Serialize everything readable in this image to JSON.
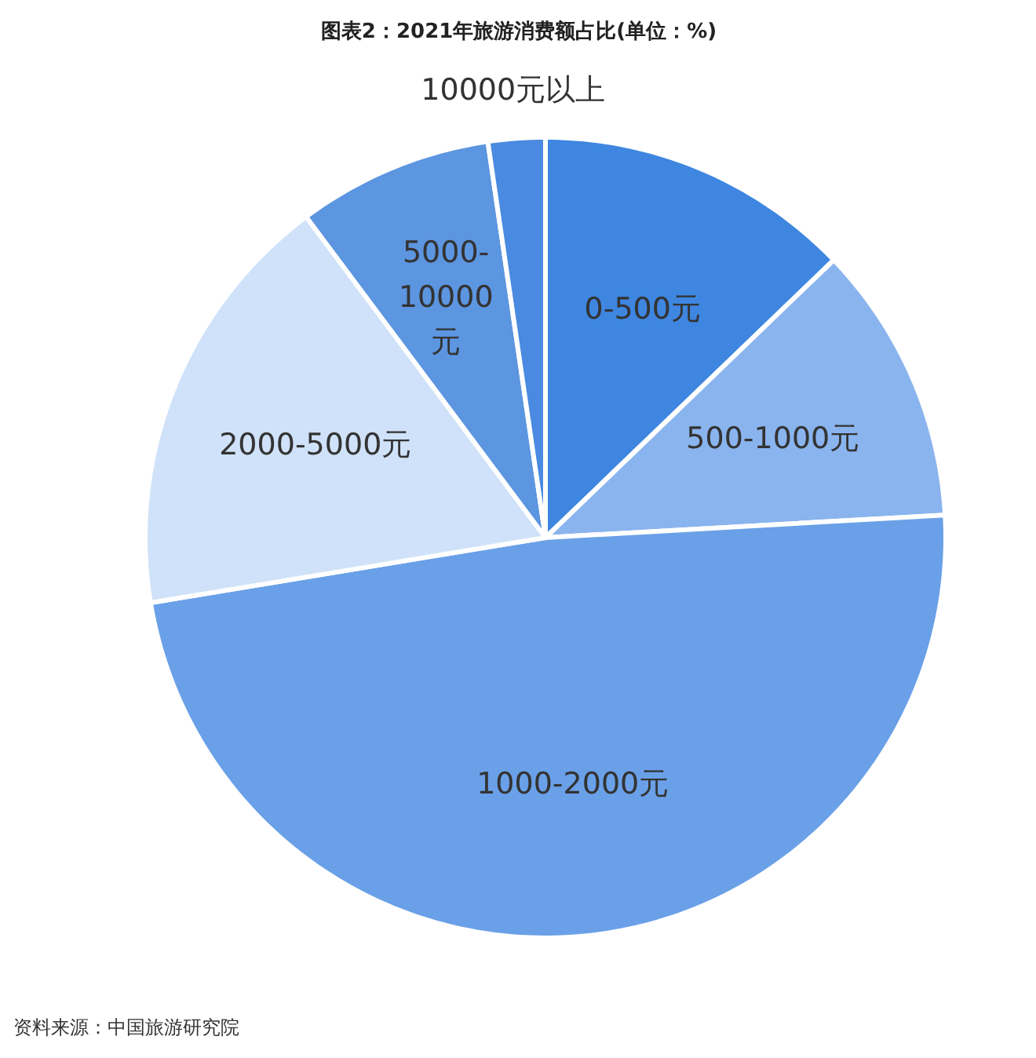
{
  "chart_data": {
    "type": "pie",
    "title": "图表2：2021年旅游消费额占比(单位：%)",
    "categories": [
      "0-500元",
      "500-1000元",
      "1000-2000元",
      "2000-5000元",
      "5000-10000元",
      "10000元以上"
    ],
    "values": [
      12.8,
      11.3,
      48.3,
      17.4,
      7.9,
      2.3
    ],
    "colors": [
      "#3e86e0",
      "#8ab4ee",
      "#6aa0e8",
      "#cfe2f9",
      "#5c95e0",
      "#4a8ae0"
    ],
    "annotations": [
      "资料来源：中国旅游研究院"
    ]
  }
}
